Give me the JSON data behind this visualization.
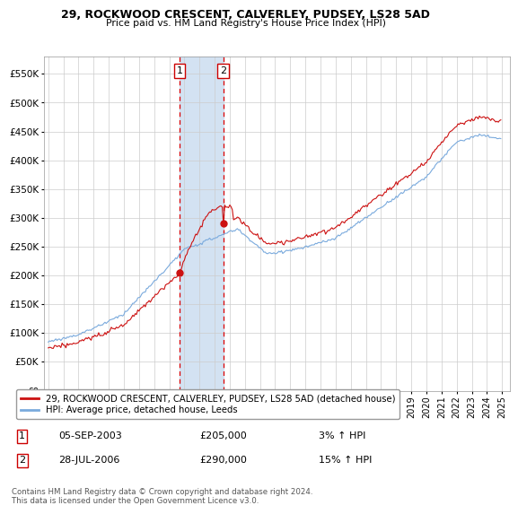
{
  "title_line1": "29, ROCKWOOD CRESCENT, CALVERLEY, PUDSEY, LS28 5AD",
  "title_line2": "Price paid vs. HM Land Registry's House Price Index (HPI)",
  "ylabel_ticks": [
    "£0",
    "£50K",
    "£100K",
    "£150K",
    "£200K",
    "£250K",
    "£300K",
    "£350K",
    "£400K",
    "£450K",
    "£500K",
    "£550K"
  ],
  "ytick_values": [
    0,
    50000,
    100000,
    150000,
    200000,
    250000,
    300000,
    350000,
    400000,
    450000,
    500000,
    550000
  ],
  "xlim_start": 1994.7,
  "xlim_end": 2025.5,
  "ylim": [
    0,
    580000
  ],
  "sale1_x": 2003.68,
  "sale1_y": 205000,
  "sale2_x": 2006.57,
  "sale2_y": 290000,
  "sale1_label": "1",
  "sale2_label": "2",
  "vline1_x": 2003.68,
  "vline2_x": 2006.57,
  "shade_color": "#ccddf0",
  "vline_color": "#dd0000",
  "legend_label1": "29, ROCKWOOD CRESCENT, CALVERLEY, PUDSEY, LS28 5AD (detached house)",
  "legend_label2": "HPI: Average price, detached house, Leeds",
  "line1_color": "#cc1111",
  "line2_color": "#7aaadd",
  "marker_color": "#cc1111",
  "table_row1": [
    "1",
    "05-SEP-2003",
    "£205,000",
    "3% ↑ HPI"
  ],
  "table_row2": [
    "2",
    "28-JUL-2006",
    "£290,000",
    "15% ↑ HPI"
  ],
  "footnote": "Contains HM Land Registry data © Crown copyright and database right 2024.\nThis data is licensed under the Open Government Licence v3.0.",
  "background_color": "#ffffff",
  "grid_color": "#cccccc"
}
